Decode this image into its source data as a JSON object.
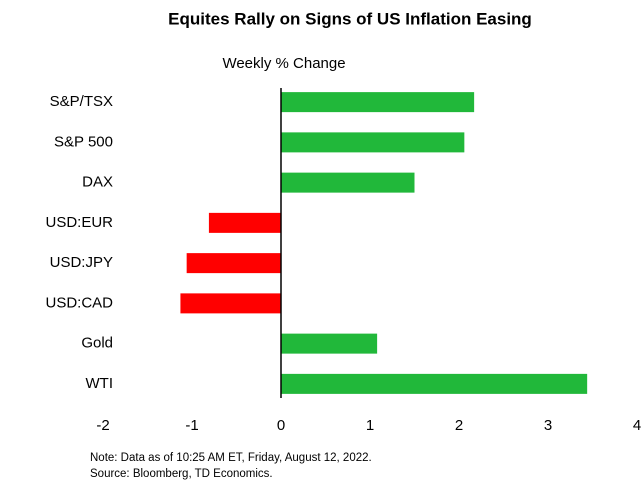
{
  "chart_data": {
    "type": "hbar",
    "title": "Equites Rally on Signs of US Inflation Easing",
    "subtitle": "Weekly % Change",
    "categories": [
      "S&P/TSX",
      "S&P 500",
      "DAX",
      "USD:EUR",
      "USD:JPY",
      "USD:CAD",
      "Gold",
      "WTI"
    ],
    "values": [
      2.17,
      2.06,
      1.5,
      -0.81,
      -1.06,
      -1.13,
      1.08,
      3.44
    ],
    "colors": [
      "#21b83a",
      "#21b83a",
      "#21b83a",
      "#ff0000",
      "#ff0000",
      "#ff0000",
      "#21b83a",
      "#21b83a"
    ],
    "xlim": [
      -2,
      4
    ],
    "xticks": [
      -2,
      -1,
      0,
      1,
      2,
      3,
      4
    ],
    "notes": [
      "Note: Data as of 10:25 AM ET, Friday, August 12, 2022.",
      "Source: Bloomberg, TD Economics."
    ]
  }
}
